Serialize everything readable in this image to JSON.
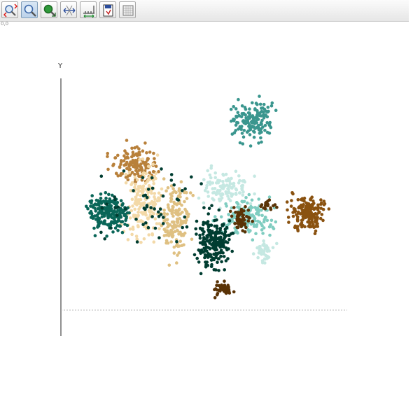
{
  "window": {
    "coordinate_readout": "0,0"
  },
  "toolbar": {
    "buttons": [
      {
        "id": "zoom-in-out",
        "icon": "zoom-in-out-icon",
        "active": false
      },
      {
        "id": "zoom",
        "icon": "magnifier-icon",
        "active": true
      },
      {
        "id": "pan",
        "icon": "pan-magnifier-icon",
        "active": false
      },
      {
        "id": "axes-fit",
        "icon": "axes-fit-icon",
        "active": false
      },
      {
        "id": "axis-scale",
        "icon": "axis-scale-icon",
        "active": false
      },
      {
        "id": "export",
        "icon": "save-export-icon",
        "active": false
      },
      {
        "id": "grid",
        "icon": "grid-table-icon",
        "active": false
      }
    ]
  },
  "chart_data": {
    "type": "scatter",
    "ylabel": "Y",
    "xlabel": "",
    "xlim": [
      0,
      100
    ],
    "ylim": [
      0,
      100
    ],
    "legend": "none",
    "grid": false,
    "clusters": [
      {
        "color": "#3a968e",
        "center": [
          66.5,
          82
        ],
        "spread": [
          4.5,
          5.2
        ],
        "count": 150
      },
      {
        "color": "#b8803a",
        "center": [
          26,
          63
        ],
        "spread": [
          5,
          5
        ],
        "count": 135
      },
      {
        "color": "#f3d9a8",
        "center": [
          29,
          47
        ],
        "spread": [
          4.5,
          10
        ],
        "count": 200
      },
      {
        "color": "#dfc082",
        "center": [
          40,
          39
        ],
        "spread": [
          3,
          10
        ],
        "count": 155
      },
      {
        "color": "#096658",
        "center": [
          17,
          42
        ],
        "spread": [
          4.5,
          5
        ],
        "count": 210
      },
      {
        "color": "#c5e8e2",
        "center": [
          57.5,
          53
        ],
        "spread": [
          5.5,
          4.5
        ],
        "count": 110
      },
      {
        "color": "#80cdc1",
        "center": [
          65,
          40
        ],
        "spread": [
          6,
          5.5
        ],
        "count": 150
      },
      {
        "color": "#c5e8e2",
        "center": [
          71,
          25
        ],
        "spread": [
          2.3,
          2.8
        ],
        "count": 40
      },
      {
        "color": "#003d31",
        "center": [
          53.5,
          29
        ],
        "spread": [
          3.8,
          7
        ],
        "count": 205
      },
      {
        "color": "#8a5210",
        "center": [
          86,
          42
        ],
        "spread": [
          4,
          4.8
        ],
        "count": 175
      },
      {
        "color": "#5a3306",
        "center": [
          63,
          40
        ],
        "spread": [
          2.5,
          3.5
        ],
        "count": 55
      },
      {
        "color": "#5a3306",
        "center": [
          57,
          9
        ],
        "spread": [
          2.4,
          1.9
        ],
        "count": 45
      },
      {
        "color": "#5a3306",
        "center": [
          72,
          45
        ],
        "spread": [
          2.2,
          2
        ],
        "count": 22
      },
      {
        "color": "#003d31",
        "center": [
          34,
          45
        ],
        "spread": [
          12,
          10
        ],
        "count": 60
      }
    ]
  }
}
